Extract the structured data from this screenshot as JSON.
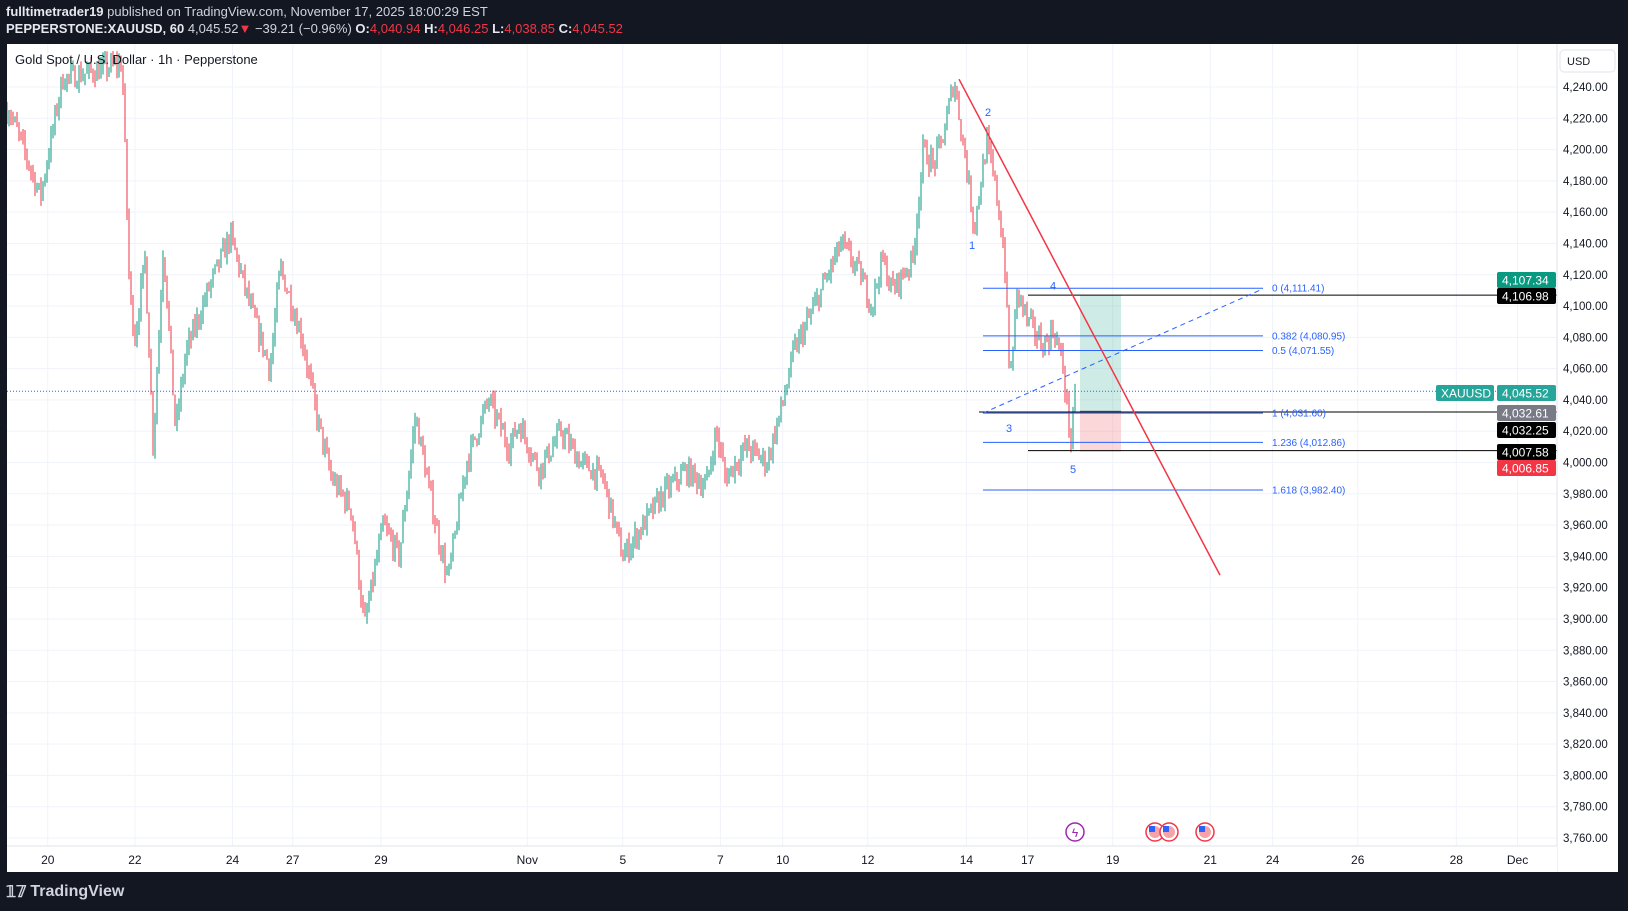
{
  "header": {
    "author": "fulltimetrader19",
    "published": "published on TradingView.com, November 17, 2025 18:00:29 EST",
    "symbol": "PEPPERSTONE:XAUUSD, 60",
    "last": "4,045.52",
    "change": "−39.21 (−0.96%)",
    "o_label": "O:",
    "o": "4,040.94",
    "h_label": "H:",
    "h": "4,046.25",
    "l_label": "L:",
    "l": "4,038.85",
    "c_label": "C:",
    "c": "4,045.52",
    "change_icon": "triangle-down-icon"
  },
  "chart_title": "Gold Spot / U.S. Dollar · 1h · Pepperstone",
  "currency": "USD",
  "footer": {
    "brand": "TradingView"
  },
  "colors": {
    "up": "#089981",
    "down": "#f23645",
    "fib": "#2962ff",
    "trend": "#f23645",
    "bg_dark": "#131722"
  },
  "chart_data": {
    "type": "candlestick",
    "interval": "1h",
    "ylim": [
      3750,
      4250
    ],
    "y_ticks": [
      4240,
      4220,
      4200,
      4180,
      4160,
      4140,
      4120,
      4100,
      4080,
      4060,
      4040,
      4020,
      4000,
      3980,
      3960,
      3940,
      3920,
      3900,
      3880,
      3860,
      3840,
      3820,
      3800,
      3780,
      3760
    ],
    "x_ticks": [
      "20",
      "22",
      "24",
      "27",
      "29",
      "Nov",
      "5",
      "7",
      "10",
      "12",
      "14",
      "17",
      "19",
      "21",
      "24",
      "26",
      "28",
      "Dec"
    ],
    "grid": true,
    "approx_close_path": [
      [
        "10-17 03:00",
        4225
      ],
      [
        "10-17 20:00",
        4170
      ],
      [
        "10-20 08:00",
        4245
      ],
      [
        "10-21 01:00",
        4250
      ],
      [
        "10-21 17:00",
        4255
      ],
      [
        "10-21 21:00",
        4110
      ],
      [
        "10-22 00:00",
        4080
      ],
      [
        "10-22 05:00",
        4130
      ],
      [
        "10-22 09:00",
        4010
      ],
      [
        "10-22 14:00",
        4140
      ],
      [
        "10-22 20:00",
        4020
      ],
      [
        "10-23 01:00",
        4070
      ],
      [
        "10-23 12:00",
        4110
      ],
      [
        "10-23 23:00",
        4145
      ],
      [
        "10-24 07:00",
        4100
      ],
      [
        "10-24 15:00",
        4060
      ],
      [
        "10-24 19:00",
        4125
      ],
      [
        "10-27 05:00",
        4080
      ],
      [
        "10-27 13:00",
        4030
      ],
      [
        "10-27 21:00",
        3990
      ],
      [
        "10-28 08:00",
        3970
      ],
      [
        "10-28 15:00",
        3895
      ],
      [
        "10-29 01:00",
        3960
      ],
      [
        "10-29 09:00",
        3940
      ],
      [
        "10-29 17:00",
        4030
      ],
      [
        "10-30 03:00",
        3960
      ],
      [
        "10-30 09:00",
        3925
      ],
      [
        "10-30 18:00",
        4000
      ],
      [
        "10-31 05:00",
        4040
      ],
      [
        "10-31 15:00",
        4010
      ],
      [
        "10-31 20:00",
        4025
      ],
      [
        "11-03 06:00",
        3995
      ],
      [
        "11-03 17:00",
        4020
      ],
      [
        "11-04 03:00",
        4000
      ],
      [
        "11-04 14:00",
        3990
      ],
      [
        "11-05 00:00",
        3940
      ],
      [
        "11-05 10:00",
        3960
      ],
      [
        "11-05 20:00",
        3980
      ],
      [
        "11-06 07:00",
        3995
      ],
      [
        "11-06 17:00",
        3985
      ],
      [
        "11-06 22:00",
        4020
      ],
      [
        "11-07 02:00",
        3990
      ],
      [
        "11-07 10:00",
        4010
      ],
      [
        "11-07 18:00",
        4000
      ],
      [
        "11-10 00:30",
        4040
      ],
      [
        "11-10 06:00",
        4070
      ],
      [
        "11-10 18:00",
        4100
      ],
      [
        "11-11 09:00",
        4140
      ],
      [
        "11-11 20:00",
        4120
      ],
      [
        "11-12 02:00",
        4100
      ],
      [
        "11-12 07:00",
        4130
      ],
      [
        "11-12 12:00",
        4110
      ],
      [
        "11-12 22:00",
        4130
      ],
      [
        "11-13 03:00",
        4200
      ],
      [
        "11-13 08:00",
        4190
      ],
      [
        "11-13 13:00",
        4210
      ],
      [
        "11-13 18:00",
        4245
      ],
      [
        "11-14 00:00",
        4190
      ],
      [
        "11-14 03:00",
        4150
      ],
      [
        "11-14 08:00",
        4205
      ],
      [
        "11-14 12:00",
        4170
      ],
      [
        "11-14 15:00",
        4130
      ],
      [
        "11-14 17:00",
        4050
      ],
      [
        "11-14 20:00",
        4110
      ],
      [
        "11-17 00:00",
        4090
      ],
      [
        "11-17 09:00",
        4075
      ],
      [
        "11-17 15:00",
        4085
      ],
      [
        "11-17 20:00",
        4060
      ],
      [
        "11-18 00:30",
        4012
      ],
      [
        "11-18 03:00",
        4045.52
      ]
    ],
    "last_price": 4045.52,
    "fib_levels": [
      {
        "label": "0 (4,111.41)",
        "price": 4111.41
      },
      {
        "label": "0.382 (4,080.95)",
        "price": 4080.95
      },
      {
        "label": "0.5 (4,071.55)",
        "price": 4071.55
      },
      {
        "label": "1 (4,031.60)",
        "price": 4031.6
      },
      {
        "label": "1.236 (4,012.86)",
        "price": 4012.86
      },
      {
        "label": "1.618 (3,982.40)",
        "price": 3982.4
      }
    ],
    "wave_labels": [
      {
        "text": "1",
        "price": 4139
      },
      {
        "text": "2",
        "price": 4224
      },
      {
        "text": "3",
        "price": 4022
      },
      {
        "text": "4",
        "price": 4113
      },
      {
        "text": "5",
        "price": 3996
      }
    ],
    "trendline": {
      "from_price": 4245,
      "to_price": 3928
    },
    "position": {
      "target": 4106.98,
      "entry": 4032.61,
      "stop": 4006.85
    },
    "horizontal_lines": [
      4106.98,
      4032.25,
      4007.58
    ],
    "price_tags": [
      {
        "text": "4,107.34",
        "color": "#089981"
      },
      {
        "text": "4,106.98",
        "color": "#000000"
      },
      {
        "text": "4,045.52",
        "color": "#26a69a",
        "symbol": "XAUUSD"
      },
      {
        "text": "4,032.61",
        "color": "#787b86"
      },
      {
        "text": "4,032.25",
        "color": "#000000"
      },
      {
        "text": "4,007.58",
        "color": "#000000"
      },
      {
        "text": "4,006.85",
        "color": "#f23645"
      }
    ],
    "events": [
      "lightning-icon",
      "us-flag-icon",
      "us-flag-icon",
      "us-flag-icon"
    ]
  }
}
